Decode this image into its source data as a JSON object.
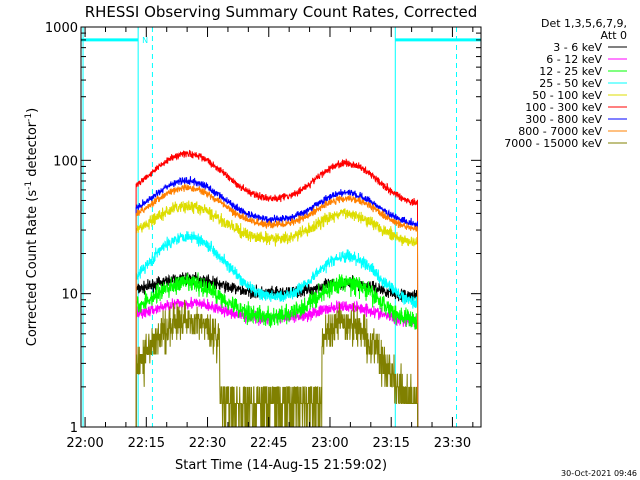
{
  "chart_data": {
    "type": "line",
    "title": "RHESSI Observing Summary Count Rates, Corrected",
    "xlabel": "Start Time (14-Aug-15 21:59:02)",
    "ylabel_main": "Corrected Count Rate (s",
    "ylabel_sup1": "-1",
    "ylabel_mid": " detector",
    "ylabel_sup2": "-1",
    "ylabel_end": ")",
    "y_scale": "log",
    "ylim": [
      1,
      1000
    ],
    "x_unit": "minutes since 22:00 UT",
    "xlim": [
      -1,
      97
    ],
    "x_ticks": [
      {
        "v": 0,
        "label": "22:00"
      },
      {
        "v": 15,
        "label": "22:15"
      },
      {
        "v": 30,
        "label": "22:30"
      },
      {
        "v": 45,
        "label": "22:45"
      },
      {
        "v": 60,
        "label": "23:00"
      },
      {
        "v": 75,
        "label": "23:15"
      },
      {
        "v": 90,
        "label": "23:30"
      }
    ],
    "y_ticks": [
      {
        "v": 1,
        "label": "1"
      },
      {
        "v": 10,
        "label": "10"
      },
      {
        "v": 100,
        "label": "100"
      },
      {
        "v": 1000,
        "label": "1000"
      }
    ],
    "legend_header": [
      "Det 1,3,5,6,7,9,",
      "Att 0"
    ],
    "legend_position": "right",
    "night_marker": "N",
    "night_intervals": [
      [
        -1,
        13
      ],
      [
        76,
        97
      ]
    ],
    "night_level": 800,
    "dashed_markers": [
      16.5,
      91
    ],
    "cyan_solid_markers": [
      -0.5,
      13,
      76
    ],
    "data_start": 12.5,
    "data_end": 81.5,
    "series": [
      {
        "name": "3 - 6 keV",
        "color": "#000000",
        "base": 10,
        "peak1": 13,
        "peak2": 12,
        "noise": 0.05
      },
      {
        "name": "6 - 12 keV",
        "color": "#ff00ff",
        "base": 6.5,
        "peak1": 8.5,
        "peak2": 8,
        "noise": 0.05
      },
      {
        "name": "12 - 25 keV",
        "color": "#00ff00",
        "base": 6.5,
        "peak1": 12,
        "peak2": 12,
        "noise": 0.08
      },
      {
        "name": "25 - 50 keV",
        "color": "#00ffff",
        "base": 9,
        "peak1": 27,
        "peak2": 19,
        "noise": 0.05
      },
      {
        "name": "50 - 100 keV",
        "color": "#dddd00",
        "base": 25,
        "peak1": 45,
        "peak2": 40,
        "noise": 0.05
      },
      {
        "name": "100 - 300 keV",
        "color": "#ff0000",
        "base": 50,
        "peak1": 112,
        "peak2": 95,
        "noise": 0.03
      },
      {
        "name": "300 - 800 keV",
        "color": "#0000ff",
        "base": 35,
        "peak1": 70,
        "peak2": 57,
        "noise": 0.03
      },
      {
        "name": "800 - 7000 keV",
        "color": "#ff8000",
        "base": 32,
        "peak1": 62,
        "peak2": 52,
        "noise": 0.03
      },
      {
        "name": "7000 - 15000 keV",
        "color": "#808000",
        "base": 1.5,
        "peak1": 6.5,
        "peak2": 6,
        "noise": 0.15
      }
    ]
  },
  "footer": {
    "timestamp": "30-Oct-2021 09:46"
  }
}
